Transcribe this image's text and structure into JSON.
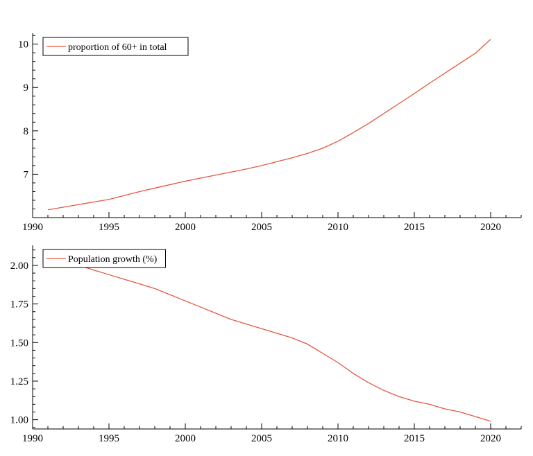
{
  "chart_data": [
    {
      "type": "line",
      "title": "",
      "xlabel": "",
      "ylabel": "",
      "x": [
        1991,
        1992,
        1993,
        1994,
        1995,
        1996,
        1997,
        1998,
        1999,
        2000,
        2001,
        2002,
        2003,
        2004,
        2005,
        2006,
        2007,
        2008,
        2009,
        2010,
        2011,
        2012,
        2013,
        2014,
        2015,
        2016,
        2017,
        2018,
        2019,
        2020
      ],
      "series": [
        {
          "name": "proportion of 60+ in total",
          "color": "#e8553e",
          "values": [
            6.18,
            6.24,
            6.3,
            6.36,
            6.42,
            6.51,
            6.6,
            6.68,
            6.76,
            6.84,
            6.91,
            6.98,
            7.05,
            7.12,
            7.2,
            7.29,
            7.38,
            7.48,
            7.6,
            7.76,
            7.96,
            8.17,
            8.4,
            8.63,
            8.86,
            9.1,
            9.33,
            9.56,
            9.79,
            10.11
          ]
        }
      ],
      "xlim": [
        1990,
        2022
      ],
      "ylim": [
        6.0,
        10.25
      ],
      "xticks": [
        1990,
        1995,
        2000,
        2005,
        2010,
        2015,
        2020
      ],
      "yticks": [
        7,
        8,
        9,
        10
      ],
      "xtick_labels": [
        "1990",
        "1995",
        "2000",
        "2005",
        "2010",
        "2015",
        "2020"
      ],
      "ytick_labels": [
        "7",
        "8",
        "9",
        "10"
      ],
      "legend_position": "top-left",
      "grid": false
    },
    {
      "type": "line",
      "title": "",
      "xlabel": "",
      "ylabel": "",
      "x": [
        1991,
        1992,
        1993,
        1994,
        1995,
        1996,
        1997,
        1998,
        1999,
        2000,
        2001,
        2002,
        2003,
        2004,
        2005,
        2006,
        2007,
        2008,
        2009,
        2010,
        2011,
        2012,
        2013,
        2014,
        2015,
        2016,
        2017,
        2018,
        2019,
        2020
      ],
      "series": [
        {
          "name": "Population growth (%)",
          "color": "#e8553e",
          "values": [
            2.06,
            2.03,
            2.0,
            1.97,
            1.94,
            1.91,
            1.88,
            1.85,
            1.81,
            1.77,
            1.73,
            1.69,
            1.65,
            1.62,
            1.59,
            1.56,
            1.53,
            1.49,
            1.43,
            1.37,
            1.3,
            1.24,
            1.19,
            1.15,
            1.12,
            1.1,
            1.07,
            1.05,
            1.02,
            0.99
          ]
        }
      ],
      "xlim": [
        1990,
        2022
      ],
      "ylim": [
        0.94,
        2.13
      ],
      "xticks": [
        1990,
        1995,
        2000,
        2005,
        2010,
        2015,
        2020
      ],
      "yticks": [
        1.0,
        1.25,
        1.5,
        1.75,
        2.0
      ],
      "xtick_labels": [
        "1990",
        "1995",
        "2000",
        "2005",
        "2010",
        "2015",
        "2020"
      ],
      "ytick_labels": [
        "1.00",
        "1.25",
        "1.50",
        "1.75",
        "2.00"
      ],
      "legend_position": "top-left",
      "grid": false
    }
  ]
}
